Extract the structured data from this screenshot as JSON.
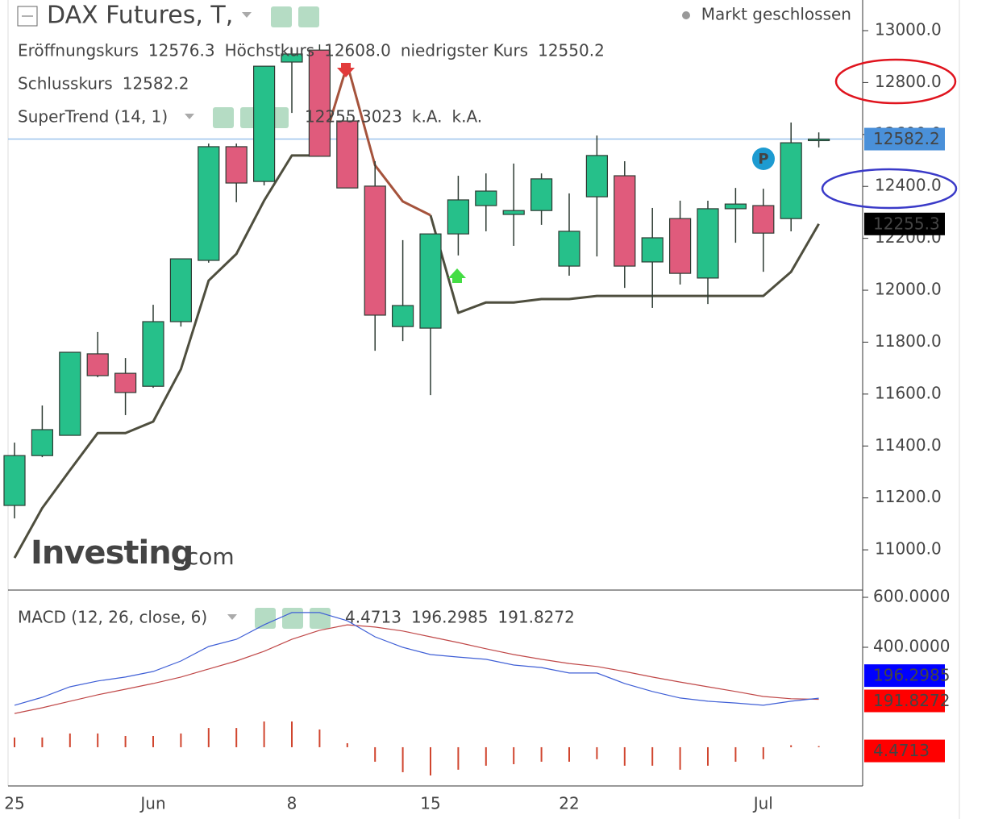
{
  "chart_data": [
    {
      "type": "candlestick",
      "title": "DAX Futures, T,",
      "status": "Markt geschlossen",
      "info": [
        {
          "label": "Eröffnungskurs",
          "value": "12576.3"
        },
        {
          "label": "Höchstkurs",
          "value": "12608.0"
        },
        {
          "label": "niedrigster Kurs",
          "value": "12550.2"
        },
        {
          "label": "Schlusskurs",
          "value": "12582.2"
        }
      ],
      "watermark": [
        "Investing",
        ".com"
      ],
      "annotations": [
        "P"
      ],
      "categories": [
        "25",
        null,
        null,
        null,
        null,
        "Jun",
        null,
        null,
        null,
        null,
        "8",
        null,
        null,
        null,
        null,
        "15",
        null,
        null,
        null,
        null,
        "22",
        null,
        null,
        null,
        null,
        null,
        null,
        "Jul",
        null,
        null
      ],
      "open": [
        11171,
        11363,
        11441,
        11755,
        11680,
        11630,
        11879,
        12115,
        12553,
        12419,
        12879,
        12925,
        12652,
        12401,
        11860,
        11854,
        12217,
        12326,
        12292,
        12307,
        12093,
        12360,
        12441,
        12109,
        12276,
        12047,
        12314,
        12326,
        12276,
        12576.3
      ],
      "high": [
        11413,
        11556,
        11761,
        11839,
        11739,
        11944,
        12121,
        12565,
        12565,
        12863,
        12932,
        12947,
        12668,
        12497,
        12193,
        12217,
        12441,
        12450,
        12488,
        12450,
        12373,
        12596,
        12497,
        12317,
        12345,
        12345,
        12394,
        12391,
        12646,
        12608
      ],
      "low": [
        11121,
        11357,
        11441,
        11665,
        11519,
        11624,
        11860,
        12106,
        12339,
        12404,
        12683,
        12516,
        12394,
        11767,
        11804,
        11596,
        12134,
        12227,
        12171,
        12252,
        12056,
        12130,
        12009,
        11932,
        12022,
        11947,
        12183,
        12071,
        12227,
        12550.2
      ],
      "close": [
        11363,
        11463,
        11761,
        11671,
        11606,
        11879,
        12121,
        12553,
        12413,
        12863,
        12910,
        12516,
        12394,
        11904,
        11941,
        12217,
        12348,
        12382,
        12307,
        12429,
        12227,
        12519,
        12093,
        12202,
        12065,
        12314,
        12332,
        12220,
        12568,
        12582.2
      ],
      "up_color": "#26c08a",
      "down_color": "#e05b7c",
      "last_color": "#4a90d9",
      "ylim": [
        10845,
        13118
      ],
      "yticks": [
        {
          "value": 13000,
          "label": "13000.0"
        },
        {
          "value": 12800,
          "label": "12800.0"
        },
        {
          "value": 12600,
          "label": "12600.0"
        },
        {
          "value": 12400,
          "label": "12400.0"
        },
        {
          "value": 12200,
          "label": "12200.0"
        },
        {
          "value": 12000,
          "label": "12000.0"
        },
        {
          "value": 11800,
          "label": "11800.0"
        },
        {
          "value": 11600,
          "label": "11600.0"
        },
        {
          "value": 11400,
          "label": "11400.0"
        },
        {
          "value": 11200,
          "label": "11200.0"
        },
        {
          "value": 11000,
          "label": "11000.0"
        }
      ],
      "overlay": {
        "title": "SuperTrend (14, 1)",
        "value_text": "12255.3023",
        "na_text": [
          "k.A.",
          "k.A."
        ],
        "axis_label": "12255.3",
        "series": [
          {
            "color": "#4e4e3e",
            "values": [
              10969,
              11161,
              11307,
              11450,
              11450,
              11494,
              11696,
              12037,
              12140,
              12345,
              12519,
              12519,
              null,
              null,
              null,
              12289,
              11913,
              11953,
              11953,
              11966,
              11966,
              11978,
              11978,
              11978,
              11978,
              11978,
              11978,
              11978,
              12071,
              12255.3023
            ]
          },
          {
            "color": "#a5533c",
            "values": [
              null,
              null,
              null,
              null,
              null,
              null,
              null,
              null,
              null,
              null,
              null,
              12519,
              12870,
              12481,
              12342,
              12289,
              null,
              null,
              null,
              null,
              null,
              null,
              null,
              null,
              null,
              null,
              null,
              null,
              null,
              null
            ]
          }
        ]
      }
    },
    {
      "type": "macd",
      "title": "MACD (12, 26, close, 6)",
      "ylim": [
        -155,
        629
      ],
      "yticks": [
        {
          "value": 600,
          "label": "600.0000"
        },
        {
          "value": 400,
          "label": "400.0000"
        }
      ],
      "macd": {
        "color": "#3f5fd6",
        "tag_color": "#0000ff",
        "values": [
          168,
          200,
          242,
          265,
          281,
          303,
          345,
          403,
          432,
          490,
          539,
          539,
          506,
          442,
          400,
          371,
          361,
          352,
          329,
          319,
          297,
          297,
          255,
          223,
          197,
          184,
          177,
          168,
          184,
          196.2985
        ]
      },
      "signal": {
        "color": "#c04848",
        "tag_color": "#ff0000",
        "values": [
          135,
          158,
          184,
          210,
          232,
          255,
          281,
          313,
          345,
          384,
          432,
          468,
          490,
          481,
          465,
          442,
          419,
          394,
          371,
          352,
          335,
          323,
          303,
          281,
          261,
          242,
          223,
          203,
          194,
          191.8272
        ]
      },
      "histogram": {
        "color": "#d0452e",
        "tag_color": "#ff0000",
        "values": [
          39,
          39,
          55,
          55,
          45,
          45,
          55,
          77,
          77,
          103,
          103,
          71,
          16,
          -58,
          -100,
          -113,
          -90,
          -74,
          -68,
          -58,
          -58,
          -48,
          -74,
          -74,
          -90,
          -74,
          -58,
          -48,
          8,
          4.4713
        ]
      }
    }
  ]
}
